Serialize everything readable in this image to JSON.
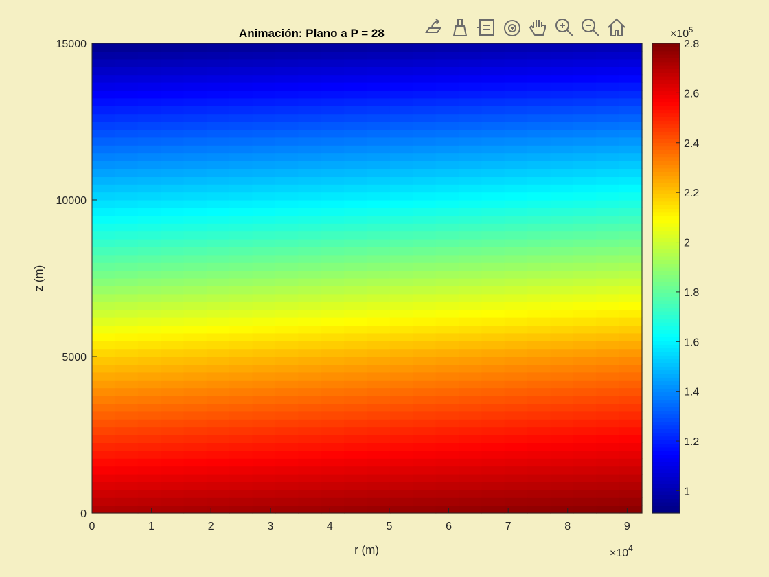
{
  "chart_data": {
    "type": "heatmap",
    "title": "Animación: Plano a P = 28",
    "xlabel": "r (m)",
    "ylabel": "z (m)",
    "x_exponent_label": "×10",
    "x_exponent": "4",
    "colorbar_exponent_label": "×10",
    "colorbar_exponent": "5",
    "xlim": [
      0,
      92500
    ],
    "ylim": [
      0,
      15000
    ],
    "clim": [
      0.91,
      2.8
    ],
    "colormap": "jet",
    "x_ticks": [
      0,
      1,
      2,
      3,
      4,
      5,
      6,
      7,
      8,
      9
    ],
    "x_tick_labels": [
      "0",
      "1",
      "2",
      "3",
      "4",
      "5",
      "6",
      "7",
      "8",
      "9"
    ],
    "y_ticks": [
      0,
      5000,
      10000,
      15000
    ],
    "y_tick_labels": [
      "0",
      "5000",
      "10000",
      "15000"
    ],
    "colorbar_ticks": [
      1,
      1.2,
      1.4,
      1.6,
      1.8,
      2,
      2.2,
      2.4,
      2.6,
      2.8
    ],
    "colorbar_tick_labels": [
      "1",
      "1.2",
      "1.4",
      "1.6",
      "1.8",
      "2",
      "2.2",
      "2.4",
      "2.6",
      "2.8"
    ],
    "grid_r": [
      0,
      46000,
      92500
    ],
    "grid_z": [
      0,
      2500,
      5000,
      7500,
      10000,
      12500,
      15000
    ],
    "values_x1e5": [
      [
        2.72,
        2.45,
        2.18,
        1.85,
        1.55,
        1.25,
        0.93
      ],
      [
        2.76,
        2.5,
        2.24,
        1.92,
        1.6,
        1.3,
        0.96
      ],
      [
        2.79,
        2.55,
        2.3,
        1.98,
        1.66,
        1.35,
        1.0
      ]
    ]
  },
  "toolbar": {
    "icons": [
      "export-icon",
      "brush-icon",
      "data-tips-icon",
      "rotate-icon",
      "pan-icon",
      "zoom-in-icon",
      "zoom-out-icon",
      "home-icon"
    ]
  }
}
